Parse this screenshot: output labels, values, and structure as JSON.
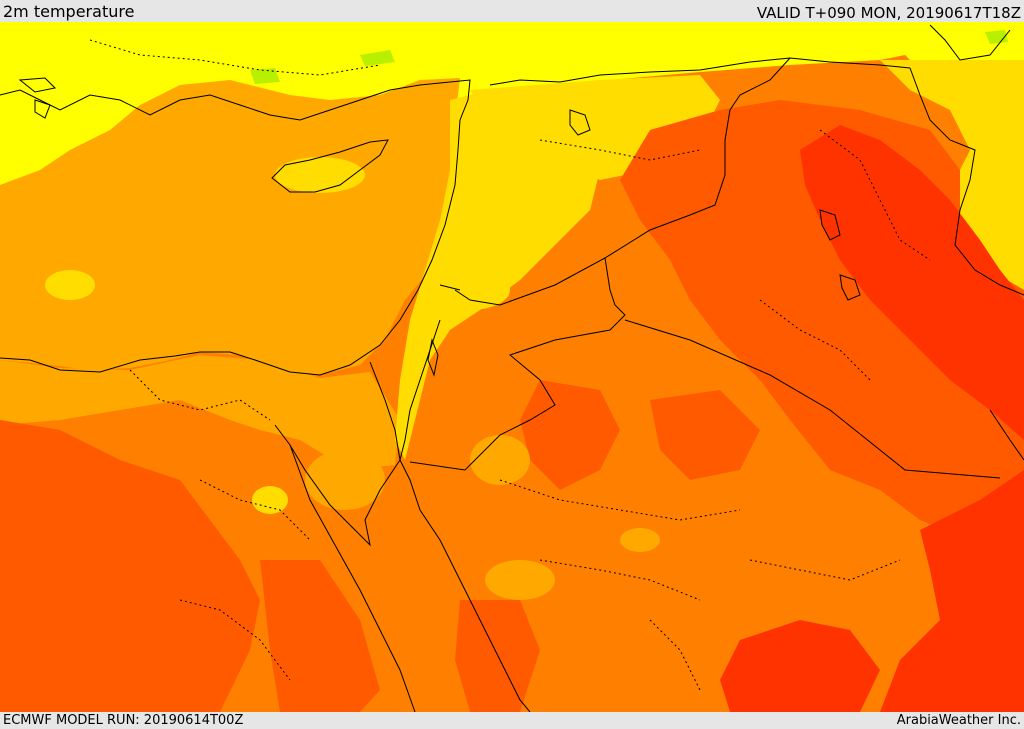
{
  "header": {
    "field_title": "2m temperature",
    "valid_time": "VALID T+090 MON, 20190617T18Z"
  },
  "footer": {
    "model_run": "ECMWF MODEL RUN: 20190614T00Z",
    "provider": "ArabiaWeather Inc."
  },
  "colors": {
    "yellow": "#ffff00",
    "yellow_orange": "#ffdd00",
    "light_orange": "#ffa800",
    "orange": "#ff8000",
    "dark_orange": "#ff5a00",
    "red_orange": "#ff3300",
    "green": "#b8f000",
    "border": "#000000"
  }
}
